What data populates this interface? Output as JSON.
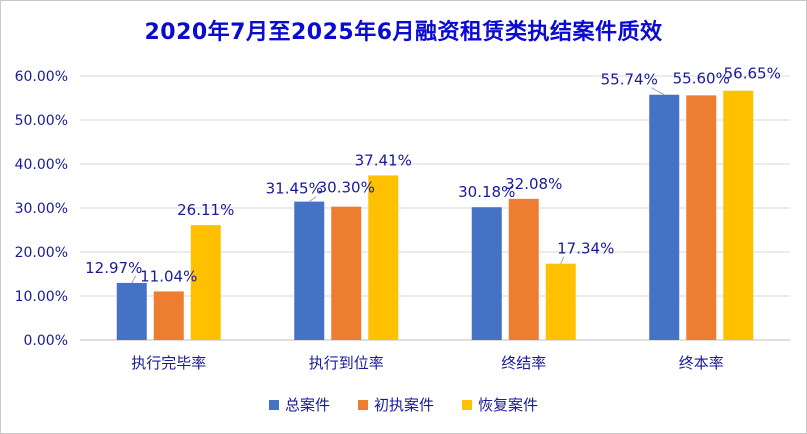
{
  "chart_data": {
    "type": "bar",
    "title": "2020年7月至2025年6月融资租赁类执结案件质效",
    "categories": [
      "执行完毕率",
      "执行到位率",
      "终结率",
      "终本率"
    ],
    "series": [
      {
        "name": "总案件",
        "color": "#4472c4",
        "values": [
          12.97,
          31.45,
          30.18,
          55.74
        ],
        "labels": [
          "12.97%",
          "31.45%",
          "30.18%",
          "55.74%"
        ]
      },
      {
        "name": "初执案件",
        "color": "#ed7d31",
        "values": [
          11.04,
          30.3,
          32.08,
          55.6
        ],
        "labels": [
          "11.04%",
          "30.30%",
          "32.08%",
          "55.60%"
        ]
      },
      {
        "name": "恢复案件",
        "color": "#ffc000",
        "values": [
          26.11,
          37.41,
          17.34,
          56.65
        ],
        "labels": [
          "26.11%",
          "37.41%",
          "17.34%",
          "56.65%"
        ]
      }
    ],
    "ylim": [
      0,
      60
    ],
    "yticks": [
      "0.00%",
      "10.00%",
      "20.00%",
      "30.00%",
      "40.00%",
      "50.00%",
      "60.00%"
    ],
    "grid": true,
    "legend": "bottom"
  }
}
